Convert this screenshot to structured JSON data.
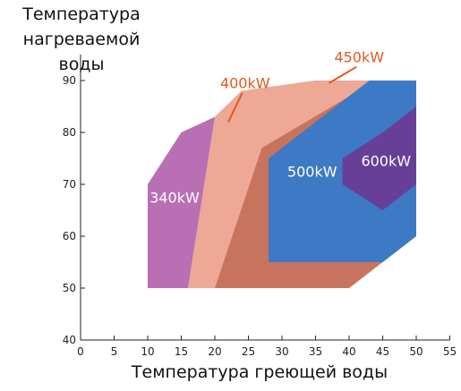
{
  "chart_data": {
    "type": "area",
    "title": "",
    "ylabel_lines": [
      "Температура",
      "нагреваемой воды"
    ],
    "xlabel": "Температура греющей воды",
    "xlim": [
      0,
      55
    ],
    "ylim": [
      40,
      95
    ],
    "x_ticks": [
      0,
      5,
      10,
      15,
      20,
      25,
      30,
      35,
      40,
      45,
      50,
      55
    ],
    "y_ticks": [
      40,
      50,
      60,
      70,
      80,
      90
    ],
    "grid": false,
    "regions": [
      {
        "name": "450kW",
        "color": "#c8735e",
        "points": [
          [
            20,
            50
          ],
          [
            20,
            83
          ],
          [
            24,
            88
          ],
          [
            35,
            90
          ],
          [
            50,
            90
          ],
          [
            50,
            60
          ],
          [
            45,
            55
          ],
          [
            40,
            50
          ]
        ]
      },
      {
        "name": "400kW",
        "color": "#eda995",
        "points": [
          [
            16,
            50
          ],
          [
            20,
            83
          ],
          [
            24,
            88
          ],
          [
            35,
            90
          ],
          [
            44,
            90
          ],
          [
            27,
            77
          ],
          [
            20,
            50
          ]
        ]
      },
      {
        "name": "340kW",
        "color": "#b86fb3",
        "points": [
          [
            10,
            50
          ],
          [
            10,
            70
          ],
          [
            15,
            80
          ],
          [
            20,
            83
          ],
          [
            16,
            50
          ]
        ]
      },
      {
        "name": "500kW",
        "color": "#3d79c4",
        "points": [
          [
            28,
            55
          ],
          [
            28,
            75
          ],
          [
            33,
            80
          ],
          [
            43,
            90
          ],
          [
            50,
            90
          ],
          [
            50,
            60
          ],
          [
            45,
            55
          ]
        ]
      },
      {
        "name": "600kW",
        "color": "#683f97",
        "points": [
          [
            39,
            70
          ],
          [
            39,
            75
          ],
          [
            45,
            80
          ],
          [
            50,
            85
          ],
          [
            50,
            70
          ],
          [
            45,
            65
          ]
        ]
      }
    ],
    "region_labels": [
      {
        "text": "340kW",
        "x": 14,
        "y": 66.5,
        "color": "#ffffff"
      },
      {
        "text": "500kW",
        "x": 34.5,
        "y": 71.5,
        "color": "#ffffff"
      },
      {
        "text": "600kW",
        "x": 45.5,
        "y": 73.5,
        "color": "#ffffff"
      }
    ],
    "callouts": [
      {
        "text": "400kW",
        "x": 24.5,
        "y": 88.5,
        "target": [
          22,
          82
        ]
      },
      {
        "text": "450kW",
        "x": 41.5,
        "y": 93.5,
        "target": [
          37,
          89.5
        ]
      }
    ]
  }
}
